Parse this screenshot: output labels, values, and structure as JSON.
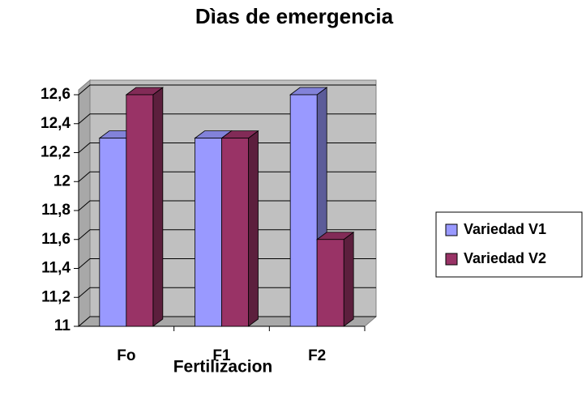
{
  "chart_data": {
    "type": "bar3d",
    "title": "Dìas de emergencia",
    "x_label": "Fertilizacion",
    "categories": [
      "Fo",
      "F1",
      "F2"
    ],
    "series": [
      {
        "name": "Variedad V1",
        "color": "#9999ff",
        "values": [
          12.3,
          12.3,
          12.6
        ]
      },
      {
        "name": "Variedad V2",
        "color": "#993366",
        "values": [
          12.6,
          12.3,
          11.6
        ]
      }
    ],
    "ylim": [
      11,
      12.6
    ],
    "yticks": [
      11,
      {
        "value": 11.2,
        "label": "11,2"
      },
      {
        "value": 11.4,
        "label": "11,4"
      },
      {
        "value": 11.6,
        "label": "11,6"
      },
      {
        "value": 11.8,
        "label": "11,8"
      },
      12,
      {
        "value": 12.2,
        "label": "12,2"
      },
      {
        "value": 12.4,
        "label": "12,4"
      },
      {
        "value": 12.6,
        "label": "12,6"
      }
    ],
    "grid": true,
    "legend": "right"
  }
}
